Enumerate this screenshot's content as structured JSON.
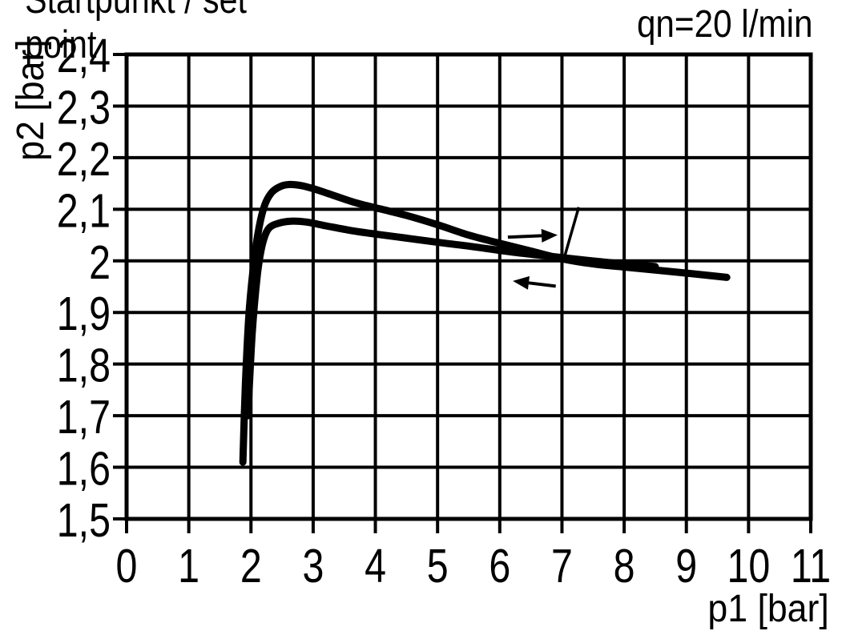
{
  "page": {
    "background": "#ffffff",
    "ink": "#000000"
  },
  "header": {
    "flow_rate_label": "qn=20 l/min"
  },
  "annotation": {
    "label": "Startpunkt / set point"
  },
  "chart_data": {
    "type": "line",
    "title": "qn=20 l/min",
    "xlabel": "p1 [bar]",
    "ylabel": "p2 [bar]",
    "xlim": [
      0,
      11
    ],
    "ylim": [
      1.5,
      2.4
    ],
    "grid": true,
    "legend": "none",
    "ink": "#000000",
    "background": "#ffffff",
    "x_ticks": [
      {
        "value": 0,
        "label": "0"
      },
      {
        "value": 1,
        "label": "1"
      },
      {
        "value": 2,
        "label": "2"
      },
      {
        "value": 3,
        "label": "3"
      },
      {
        "value": 4,
        "label": "4"
      },
      {
        "value": 5,
        "label": "5"
      },
      {
        "value": 6,
        "label": "6"
      },
      {
        "value": 7,
        "label": "7"
      },
      {
        "value": 8,
        "label": "8"
      },
      {
        "value": 9,
        "label": "9"
      },
      {
        "value": 10,
        "label": "10"
      },
      {
        "value": 11,
        "label": "11"
      }
    ],
    "y_ticks": [
      {
        "value": 2.4,
        "label": "2,4"
      },
      {
        "value": 2.3,
        "label": "2,3"
      },
      {
        "value": 2.2,
        "label": "2,2"
      },
      {
        "value": 2.1,
        "label": "2,1"
      },
      {
        "value": 2.0,
        "label": "2"
      },
      {
        "value": 1.9,
        "label": "1,9"
      },
      {
        "value": 1.8,
        "label": "1,8"
      },
      {
        "value": 1.7,
        "label": "1,7"
      },
      {
        "value": 1.6,
        "label": "1,6"
      },
      {
        "value": 1.5,
        "label": "1,5"
      }
    ],
    "series": [
      {
        "name": "upper-hysteresis-branch",
        "peak": [
          2.62,
          2.15
        ],
        "points": [
          [
            1.87,
            1.61
          ],
          [
            1.91,
            1.76
          ],
          [
            1.97,
            1.9
          ],
          [
            2.05,
            2.0
          ],
          [
            2.13,
            2.065
          ],
          [
            2.22,
            2.108
          ],
          [
            2.33,
            2.132
          ],
          [
            2.47,
            2.144
          ],
          [
            2.62,
            2.148
          ],
          [
            2.8,
            2.146
          ],
          [
            3.0,
            2.14
          ],
          [
            3.3,
            2.128
          ],
          [
            3.7,
            2.112
          ],
          [
            4.1,
            2.1
          ],
          [
            4.5,
            2.088
          ],
          [
            5.0,
            2.07
          ],
          [
            5.5,
            2.05
          ],
          [
            6.0,
            2.034
          ],
          [
            6.5,
            2.019
          ],
          [
            7.0,
            2.004
          ],
          [
            7.5,
            1.994
          ],
          [
            8.0,
            1.988
          ],
          [
            8.6,
            1.981
          ],
          [
            9.1,
            1.975
          ],
          [
            9.65,
            1.968
          ]
        ]
      },
      {
        "name": "lower-hysteresis-branch",
        "peak": [
          2.65,
          2.08
        ],
        "points": [
          [
            1.95,
            1.7
          ],
          [
            2.02,
            1.86
          ],
          [
            2.1,
            1.97
          ],
          [
            2.18,
            2.03
          ],
          [
            2.28,
            2.062
          ],
          [
            2.45,
            2.073
          ],
          [
            2.65,
            2.077
          ],
          [
            2.9,
            2.075
          ],
          [
            3.2,
            2.068
          ],
          [
            3.6,
            2.059
          ],
          [
            4.0,
            2.052
          ],
          [
            4.5,
            2.044
          ],
          [
            5.0,
            2.036
          ],
          [
            5.6,
            2.027
          ],
          [
            6.2,
            2.017
          ],
          [
            6.8,
            2.009
          ],
          [
            7.4,
            2.001
          ],
          [
            8.0,
            1.994
          ],
          [
            8.5,
            1.989
          ]
        ]
      }
    ],
    "arrows": [
      {
        "name": "direction-right-arrow",
        "direction": "right",
        "from": [
          6.13,
          2.046
        ],
        "to": [
          6.93,
          2.05
        ]
      },
      {
        "name": "direction-left-arrow",
        "direction": "left",
        "from": [
          6.9,
          1.951
        ],
        "to": [
          6.21,
          1.961
        ]
      }
    ],
    "annotation": {
      "text": "Startpunkt / set point",
      "target": [
        7.0,
        2.0
      ],
      "leader_from": [
        7.27,
        2.104
      ],
      "leader_to": [
        7.02,
        1.999
      ]
    },
    "line_width": 9,
    "grid_line_width": 4
  }
}
